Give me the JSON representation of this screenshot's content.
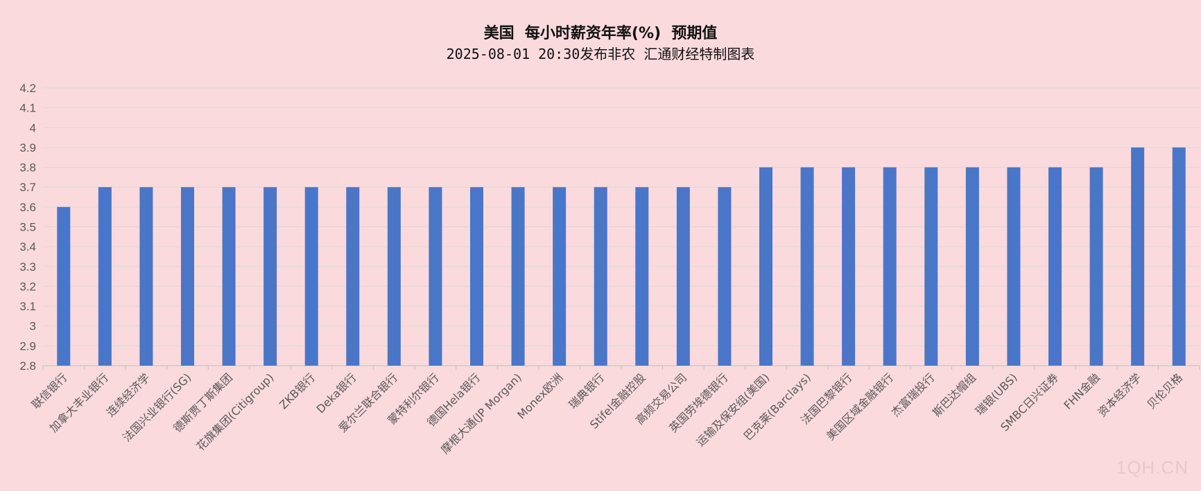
{
  "watermark": "1QH.CN",
  "chart_data": {
    "type": "bar",
    "title": "美国  每小时薪资年率(%)  预期值",
    "subtitle": "2025-08-01 20:30发布非农 汇通财经特制图表",
    "categories": [
      "联信银行",
      "加拿大丰业银行",
      "连续经济学",
      "法国兴业银行(SG)",
      "德斯贾丁斯集团",
      "花旗集团(Citigroup)",
      "ZKB银行",
      "Deka银行",
      "爱尔兰联合银行",
      "蒙特利尔银行",
      "德国Hela银行",
      "摩根大通(JP Morgan)",
      "Monex欧洲",
      "瑞典银行",
      "Stifel金融控股",
      "高频交易公司",
      "英国劳埃德银行",
      "运输及保安组(美国)",
      "巴克莱(Barclays)",
      "法国巴黎银行",
      "美国区域金融银行",
      "杰富瑞投行",
      "斯巴达帽组",
      "瑞银(UBS)",
      "SMBC日兴证券",
      "FHN金融",
      "资本经济学",
      "贝伦贝格"
    ],
    "values": [
      3.6,
      3.7,
      3.7,
      3.7,
      3.7,
      3.7,
      3.7,
      3.7,
      3.7,
      3.7,
      3.7,
      3.7,
      3.7,
      3.7,
      3.7,
      3.7,
      3.7,
      3.8,
      3.8,
      3.8,
      3.8,
      3.8,
      3.8,
      3.8,
      3.8,
      3.8,
      3.9,
      3.9
    ],
    "y_ticks": [
      "2.8",
      "2.9",
      "3",
      "3.1",
      "3.2",
      "3.3",
      "3.4",
      "3.5",
      "3.6",
      "3.7",
      "3.8",
      "3.9",
      "4",
      "4.1",
      "4.2"
    ],
    "ylim": [
      2.8,
      4.2
    ],
    "grid": true,
    "legend": "none",
    "colors": {
      "bar": "#4a76c8",
      "grid": "#d9d9d9",
      "axis": "#bfbfbf",
      "text": "#595959",
      "background": "#fadadd"
    }
  }
}
